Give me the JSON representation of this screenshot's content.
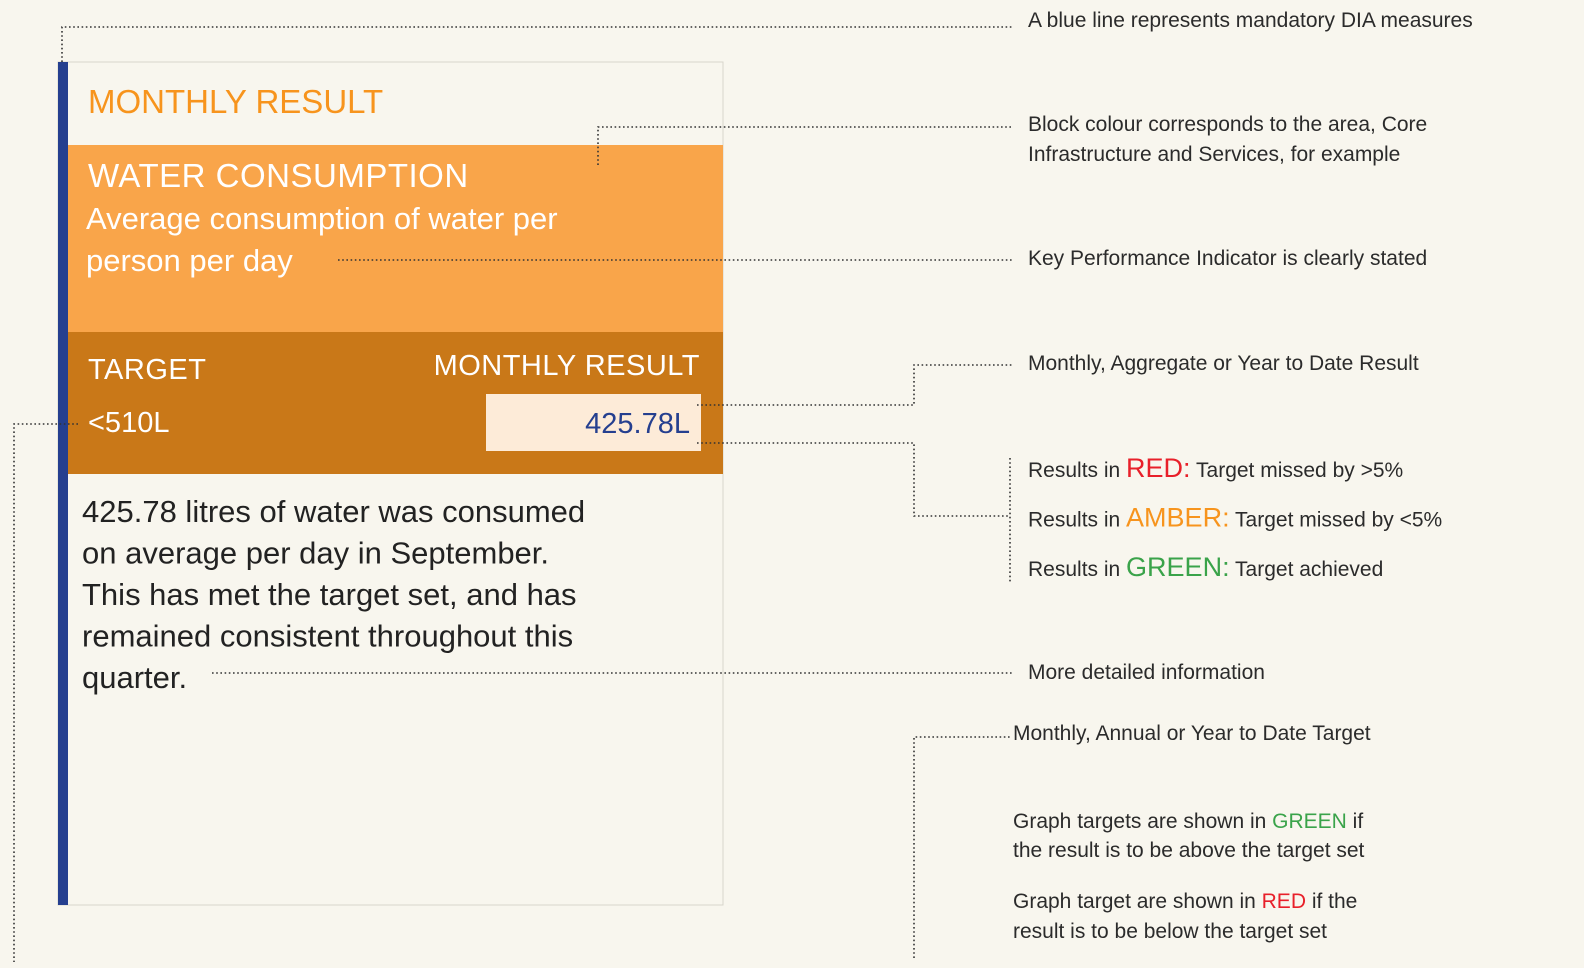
{
  "card": {
    "heading": "MONTHLY RESULT",
    "kpi_title": "WATER CONSUMPTION",
    "kpi_description_lines": [
      "Average consumption of water per",
      "person per day"
    ],
    "target_label": "TARGET",
    "target_value": "<510L",
    "result_label": "MONTHLY RESULT",
    "result_value": "425.78L",
    "detail_lines": [
      "425.78 litres of water was consumed",
      "on average per day in September.",
      "This has met the target set, and has",
      "remained consistent throughout this",
      "quarter."
    ]
  },
  "annotations": {
    "blue_line": "A blue line represents mandatory DIA measures",
    "block_colour_lines": [
      "Block colour corresponds to the area, Core",
      "Infrastructure and Services, for example"
    ],
    "kpi": "Key Performance Indicator is clearly stated",
    "result_type": "Monthly, Aggregate or Year to Date Result",
    "result_colours": [
      {
        "prefix": "Results in ",
        "keyword": "RED:",
        "suffix": " Target missed by >5%"
      },
      {
        "prefix": "Results in ",
        "keyword": "AMBER:",
        "suffix": " Target missed by <5%"
      },
      {
        "prefix": "Results in ",
        "keyword": "GREEN:",
        "suffix": " Target achieved"
      }
    ],
    "detail": "More detailed information",
    "target_type": "Monthly, Annual or Year to Date Target",
    "graph_green": {
      "prefix": "Graph targets are shown in ",
      "keyword": "GREEN",
      "suffix": " if",
      "line2": "the result is to be above the target set"
    },
    "graph_red": {
      "prefix": "Graph target are shown in ",
      "keyword": "RED",
      "suffix": " if the",
      "line2": "result is to be below the target set"
    }
  }
}
